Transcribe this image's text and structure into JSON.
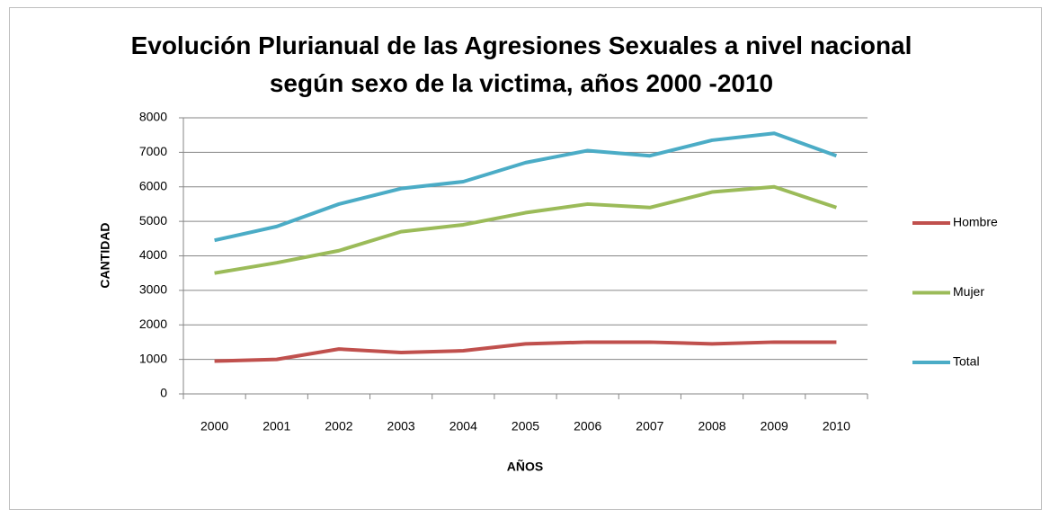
{
  "chart_data": {
    "type": "line",
    "title": "Evolución Plurianual de las Agresiones Sexuales a nivel nacional según sexo de la victima, años 2000 -2010",
    "x_label": "AÑOS",
    "y_label": "CANTIDAD",
    "categories": [
      "2000",
      "2001",
      "2002",
      "2003",
      "2004",
      "2005",
      "2006",
      "2007",
      "2008",
      "2009",
      "2010"
    ],
    "series": [
      {
        "name": "Hombre",
        "color": "#c0504d",
        "values": [
          950,
          1000,
          1300,
          1200,
          1250,
          1450,
          1500,
          1500,
          1450,
          1500,
          1500
        ]
      },
      {
        "name": "Mujer",
        "color": "#9bbb59",
        "values": [
          3500,
          3800,
          4150,
          4700,
          4900,
          5250,
          5500,
          5400,
          5850,
          6000,
          5400
        ]
      },
      {
        "name": "Total",
        "color": "#4bacc6",
        "values": [
          4450,
          4850,
          5500,
          5950,
          6150,
          6700,
          7050,
          6900,
          7350,
          7550,
          6900
        ]
      }
    ],
    "ylim": [
      0,
      8000
    ],
    "yticks": [
      0,
      1000,
      2000,
      3000,
      4000,
      5000,
      6000,
      7000,
      8000
    ],
    "grid": true,
    "legend": "right"
  }
}
